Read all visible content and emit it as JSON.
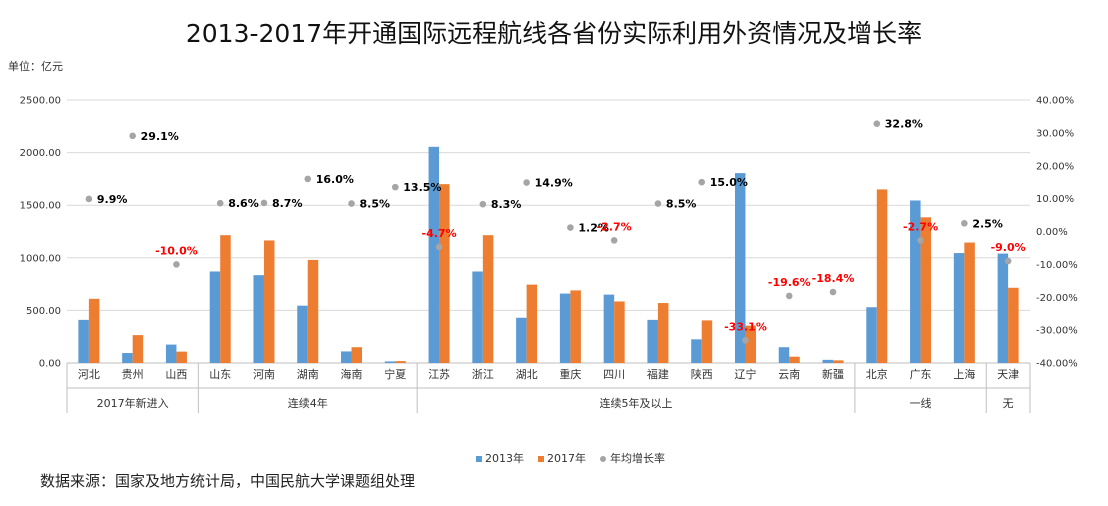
{
  "title": "2013-2017年开通国际远程航线各省份实际利用外资情况及增长率",
  "unit": "单位：亿元",
  "source": "数据来源：国家及地方统计局，中国民航大学课题组处理",
  "colors": {
    "s2013": "#5b9bd5",
    "s2017": "#ed7d31",
    "rate": "#a5a5a5",
    "positive_label": "#000000",
    "negative_label": "#ff0000"
  },
  "chart_data": {
    "type": "bar",
    "title": "2013-2017年开通国际远程航线各省份实际利用外资情况及增长率",
    "ylabel": "单位：亿元",
    "ylim": [
      0,
      2500
    ],
    "y_ticks": [
      "0.00",
      "500.00",
      "1000.00",
      "1500.00",
      "2000.00",
      "2500.00"
    ],
    "y2lim": [
      -40,
      40
    ],
    "y2_ticks": [
      "-40.00%",
      "-30.00%",
      "-20.00%",
      "-10.00%",
      "0.00%",
      "10.00%",
      "20.00%",
      "30.00%",
      "40.00%"
    ],
    "grid": true,
    "legend_position": "bottom",
    "categories": [
      "河北",
      "贵州",
      "山西",
      "山东",
      "河南",
      "湖南",
      "海南",
      "宁夏",
      "江苏",
      "浙江",
      "湖北",
      "重庆",
      "四川",
      "福建",
      "陕西",
      "辽宁",
      "云南",
      "新疆",
      "北京",
      "广东",
      "上海",
      "天津"
    ],
    "groups": [
      {
        "label": "2017年新进入",
        "count": 3
      },
      {
        "label": "连续4年",
        "count": 5
      },
      {
        "label": "连续5年及以上",
        "count": 10
      },
      {
        "label": "一线",
        "count": 3
      },
      {
        "label": "无",
        "count": 1
      }
    ],
    "series": [
      {
        "name": "2013年",
        "type": "bar",
        "values": [
          410,
          95,
          175,
          870,
          835,
          545,
          110,
          15,
          2055,
          870,
          430,
          660,
          650,
          410,
          225,
          1805,
          150,
          30,
          530,
          1545,
          1045,
          1040
        ]
      },
      {
        "name": "2017年",
        "type": "bar",
        "values": [
          610,
          265,
          108,
          1215,
          1165,
          980,
          150,
          18,
          1700,
          1215,
          745,
          690,
          585,
          570,
          405,
          355,
          60,
          25,
          1650,
          1385,
          1145,
          715
        ]
      },
      {
        "name": "年均增长率",
        "type": "scatter",
        "axis": "right",
        "values": [
          9.9,
          29.1,
          -10.0,
          8.6,
          8.7,
          16.0,
          8.5,
          13.5,
          -4.7,
          8.3,
          14.9,
          1.2,
          -2.7,
          8.5,
          15.0,
          -33.1,
          -19.6,
          -18.4,
          32.8,
          -2.7,
          2.5,
          -9.0
        ],
        "labels": [
          "9.9%",
          "29.1%",
          "-10.0%",
          "8.6%",
          "8.7%",
          "16.0%",
          "8.5%",
          "13.5%",
          "-4.7%",
          "8.3%",
          "14.9%",
          "1.2%",
          "-2.7%",
          "8.5%",
          "15.0%",
          "-33.1%",
          "-19.6%",
          "-18.4%",
          "32.8%",
          "-2.7%",
          "2.5%",
          "-9.0%"
        ]
      }
    ]
  }
}
